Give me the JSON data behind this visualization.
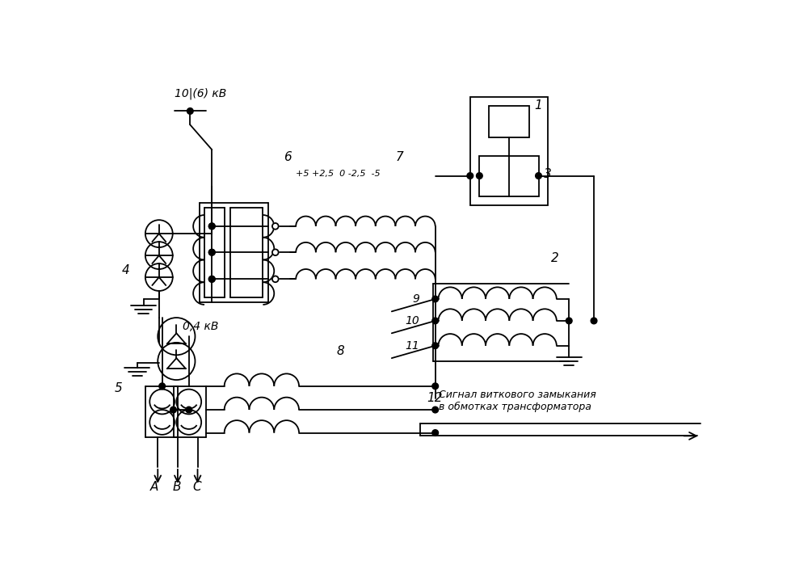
{
  "bg_color": "#ffffff",
  "fig_width": 10.0,
  "fig_height": 7.09,
  "voltage_10kv": "10|(6) кВ",
  "voltage_04kv": "0,4 кВ",
  "tap_labels": "+5 +2,5  0 -2,5  -5",
  "signal_text_line1": "Сигнал виткового замыкания",
  "signal_text_line2": "в обмотках трансформатора",
  "phase_A": "A",
  "phase_B": "B",
  "phase_C": "C",
  "n1": "1",
  "n2": "2",
  "n3": "3",
  "n4": "4",
  "n5": "5",
  "n6": "6",
  "n7": "7",
  "n8": "8",
  "n9": "9",
  "n10": "10",
  "n11": "11",
  "n12": "12"
}
